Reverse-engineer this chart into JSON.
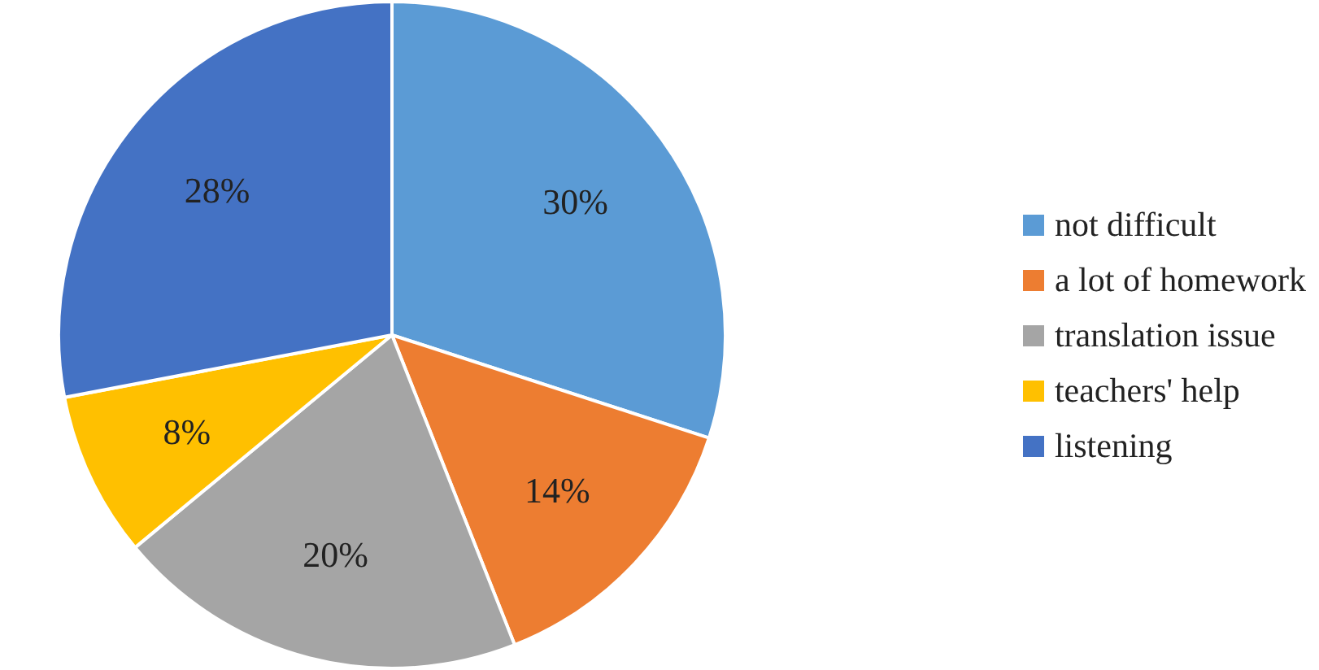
{
  "chart_data": {
    "type": "pie",
    "categories": [
      "not difficult",
      "a lot of homework",
      "translation issue",
      "teachers' help",
      "listening"
    ],
    "values": [
      30,
      14,
      20,
      8,
      28
    ],
    "colors": [
      "#5b9bd5",
      "#ed7d31",
      "#a5a5a5",
      "#ffc000",
      "#4472c4"
    ],
    "value_labels": [
      "30%",
      "14%",
      "20%",
      "8%",
      "28%"
    ],
    "legend": "right"
  }
}
